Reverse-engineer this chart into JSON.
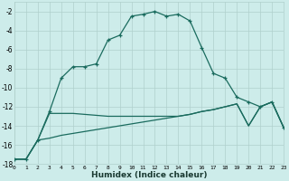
{
  "xlabel": "Humidex (Indice chaleur)",
  "bg_color": "#cdecea",
  "grid_color": "#b0d0cc",
  "line_color": "#1a6b5e",
  "xlim": [
    0,
    23
  ],
  "ylim": [
    -18,
    -1
  ],
  "yticks": [
    -18,
    -16,
    -14,
    -12,
    -10,
    -8,
    -6,
    -4,
    -2
  ],
  "xticks": [
    0,
    1,
    2,
    3,
    4,
    5,
    6,
    7,
    8,
    9,
    10,
    11,
    12,
    13,
    14,
    15,
    16,
    17,
    18,
    19,
    20,
    21,
    22,
    23
  ],
  "line1_x": [
    0,
    1,
    2,
    3,
    4,
    5,
    6,
    7,
    8,
    9,
    10,
    11,
    12,
    13,
    14,
    15,
    16,
    17,
    18,
    19,
    20,
    21,
    22,
    23
  ],
  "line1_y": [
    -17.5,
    -17.5,
    -15.5,
    -12.5,
    -9.0,
    -7.8,
    -7.8,
    -7.5,
    -5.0,
    -4.5,
    -2.5,
    -2.3,
    -2.0,
    -2.5,
    -2.3,
    -3.0,
    -5.8,
    -8.5,
    -9.0,
    -11.0,
    -11.5,
    -12.0,
    -11.5,
    -14.2
  ],
  "line2_x": [
    0,
    1,
    2,
    3,
    4,
    5,
    6,
    7,
    8,
    9,
    10,
    11,
    12,
    13,
    14,
    15,
    16,
    17,
    18,
    19,
    20,
    21,
    22,
    23
  ],
  "line2_y": [
    -17.5,
    -17.5,
    -15.5,
    -12.7,
    -12.7,
    -12.7,
    -12.8,
    -12.9,
    -13.0,
    -13.0,
    -13.0,
    -13.0,
    -13.0,
    -13.0,
    -13.0,
    -12.8,
    -12.5,
    -12.3,
    -12.0,
    -11.7,
    -14.0,
    -12.0,
    -11.5,
    -14.2
  ],
  "line3_x": [
    0,
    1,
    2,
    3,
    4,
    5,
    6,
    7,
    8,
    9,
    10,
    11,
    12,
    13,
    14,
    15,
    16,
    17,
    18,
    19,
    20,
    21,
    22,
    23
  ],
  "line3_y": [
    -17.5,
    -17.5,
    -15.5,
    -15.3,
    -15.0,
    -14.8,
    -14.6,
    -14.4,
    -14.2,
    -14.0,
    -13.8,
    -13.6,
    -13.4,
    -13.2,
    -13.0,
    -12.8,
    -12.5,
    -12.3,
    -12.0,
    -11.7,
    -14.0,
    -12.0,
    -11.5,
    -14.2
  ]
}
